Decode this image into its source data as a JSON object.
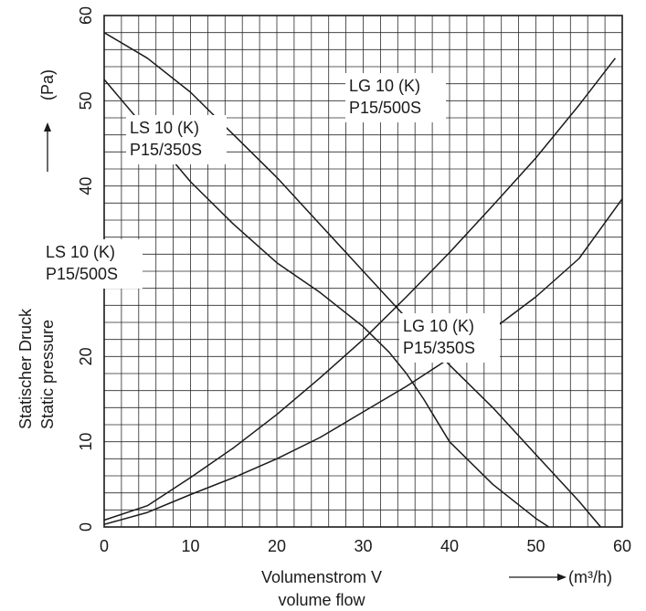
{
  "chart_data": {
    "type": "line",
    "title": "",
    "xlabel": "Volumenstrom V",
    "xlabel2": "volume flow",
    "x_unit": "(m³/h)",
    "ylabel": "Statischer Druck",
    "ylabel2": "Static pressure",
    "y_unit": "(Pa)",
    "xlim": [
      0,
      60
    ],
    "ylim": [
      0,
      60
    ],
    "x_ticks": [
      "0",
      "10",
      "20",
      "30",
      "40",
      "50",
      "60"
    ],
    "y_ticks": [
      "0",
      "10",
      "20",
      "30",
      "40",
      "50",
      "60"
    ],
    "grid": true,
    "series": [
      {
        "name": "LS 10 (K) P15/350S",
        "label_lines": [
          "LS 10 (K)",
          "P15/350S"
        ],
        "x": [
          0,
          5,
          10,
          15,
          20,
          25,
          30,
          35,
          40,
          45,
          50,
          55,
          57.5
        ],
        "y": [
          58,
          55,
          51,
          46,
          41,
          35.5,
          30,
          24.5,
          19,
          14,
          8.5,
          3,
          0
        ]
      },
      {
        "name": "LS 10 (K) P15/500S",
        "label_lines": [
          "LS 10 (K)",
          "P15/500S"
        ],
        "x": [
          0,
          5,
          10,
          15,
          20,
          25,
          30,
          33,
          35,
          37,
          38.5,
          40,
          45,
          50,
          51.5
        ],
        "y": [
          52.5,
          46.5,
          40.5,
          35.5,
          31,
          27.5,
          23.5,
          20.5,
          18,
          15,
          12.5,
          10,
          5,
          1,
          0
        ]
      },
      {
        "name": "LG 10 (K) P15/500S",
        "label_lines": [
          "LG 10 (K)",
          "P15/500S"
        ],
        "x": [
          0,
          5,
          10,
          15,
          20,
          25,
          30,
          35,
          40,
          45,
          50,
          55,
          59.2
        ],
        "y": [
          0.8,
          2.5,
          5.8,
          9.3,
          13.2,
          17.5,
          22,
          27,
          32.2,
          37.7,
          43.3,
          49.5,
          55
        ]
      },
      {
        "name": "LG 10 (K) P15/350S",
        "label_lines": [
          "LG 10 (K)",
          "P15/350S"
        ],
        "x": [
          0,
          5,
          10,
          15,
          20,
          25,
          30,
          35,
          40,
          45,
          50,
          55,
          60
        ],
        "y": [
          0.3,
          1.7,
          3.8,
          5.8,
          8,
          10.5,
          13.5,
          16.5,
          19.8,
          23.2,
          27,
          31.5,
          38.5
        ]
      }
    ]
  }
}
